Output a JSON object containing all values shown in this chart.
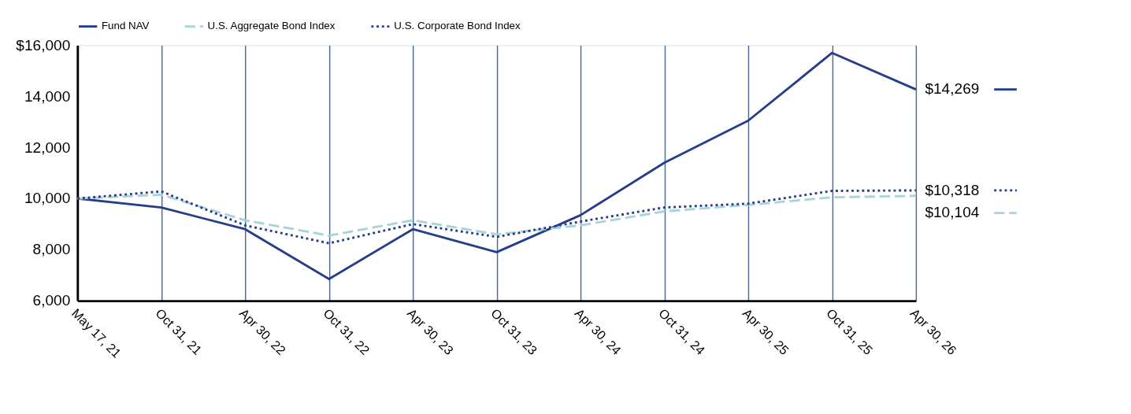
{
  "chart_data": {
    "type": "line",
    "categories": [
      "May 17, 21",
      "Oct 31, 21",
      "Apr 30, 22",
      "Oct 31, 22",
      "Apr 30, 23",
      "Oct 31, 23",
      "Apr 30, 24",
      "Oct 31, 24",
      "Apr 30, 25",
      "Oct 31, 25",
      "Apr 30, 26"
    ],
    "series": [
      {
        "name": "Fund NAV",
        "color": "#253d8a",
        "line_style": "solid",
        "values": [
          10000,
          9650,
          8800,
          6850,
          8800,
          7900,
          9350,
          11400,
          13050,
          15700,
          14269
        ],
        "value_labels": [
          null,
          null,
          null,
          null,
          null,
          null,
          null,
          null,
          null,
          null,
          "$14,269"
        ]
      },
      {
        "name": "U.S. Aggregate Bond Index",
        "color": "#a8d3d8",
        "line_style": "dashed",
        "values": [
          10000,
          10150,
          9150,
          8550,
          9150,
          8600,
          8950,
          9500,
          9750,
          10050,
          10104
        ],
        "value_labels": [
          null,
          null,
          null,
          null,
          null,
          null,
          null,
          null,
          null,
          null,
          "$10,104"
        ]
      },
      {
        "name": "U.S. Corporate Bond Index",
        "color": "#253d8a",
        "line_style": "dotted",
        "values": [
          10000,
          10280,
          8950,
          8250,
          9000,
          8500,
          9100,
          9650,
          9800,
          10300,
          10318
        ],
        "value_labels": [
          null,
          null,
          null,
          null,
          null,
          null,
          null,
          null,
          null,
          null,
          "$10,318"
        ]
      }
    ],
    "ylim": [
      6000,
      16000
    ],
    "yticks": [
      {
        "value": 6000,
        "label": "6,000"
      },
      {
        "value": 8000,
        "label": "8,000"
      },
      {
        "value": 10000,
        "label": "10,000"
      },
      {
        "value": 12000,
        "label": "12,000"
      },
      {
        "value": 14000,
        "label": "14,000"
      },
      {
        "value": 16000,
        "label": "$16,000"
      }
    ],
    "grid": "x",
    "legend": "top",
    "marker": "none"
  }
}
